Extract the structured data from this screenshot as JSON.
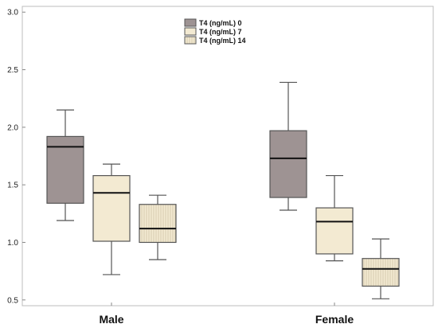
{
  "chart_data": {
    "type": "boxplot",
    "title": "",
    "xlabel": "",
    "ylabel": "",
    "ylim": [
      0.45,
      3.05
    ],
    "yticks": [
      0.5,
      1.0,
      1.5,
      2.0,
      2.5,
      3.0
    ],
    "ytick_labels": [
      "0.5",
      "1.0",
      "1.5",
      "2.0",
      "2.5",
      "3.0"
    ],
    "categories": [
      "Male",
      "Female"
    ],
    "grid": false,
    "legend_position": "top-center",
    "series": [
      {
        "name": "T4 (ng/mL) 0",
        "color": "#9e9393",
        "pattern": "none",
        "boxes": [
          {
            "min": 1.19,
            "q1": 1.34,
            "median": 1.83,
            "q3": 1.92,
            "max": 2.15
          },
          {
            "min": 1.28,
            "q1": 1.39,
            "median": 1.73,
            "q3": 1.97,
            "max": 2.39
          }
        ]
      },
      {
        "name": "T4 (ng/mL) 7",
        "color": "#f3ead2",
        "pattern": "none",
        "boxes": [
          {
            "min": 0.72,
            "q1": 1.01,
            "median": 1.43,
            "q3": 1.58,
            "max": 1.68
          },
          {
            "min": 0.84,
            "q1": 0.9,
            "median": 1.18,
            "q3": 1.3,
            "max": 1.58
          }
        ]
      },
      {
        "name": "T4 (ng/mL) 14",
        "color": "#f3ead2",
        "pattern": "vertical-lines",
        "boxes": [
          {
            "min": 0.85,
            "q1": 1.0,
            "median": 1.12,
            "q3": 1.33,
            "max": 1.41
          },
          {
            "min": 0.51,
            "q1": 0.62,
            "median": 0.77,
            "q3": 0.86,
            "max": 1.03
          }
        ]
      }
    ]
  }
}
